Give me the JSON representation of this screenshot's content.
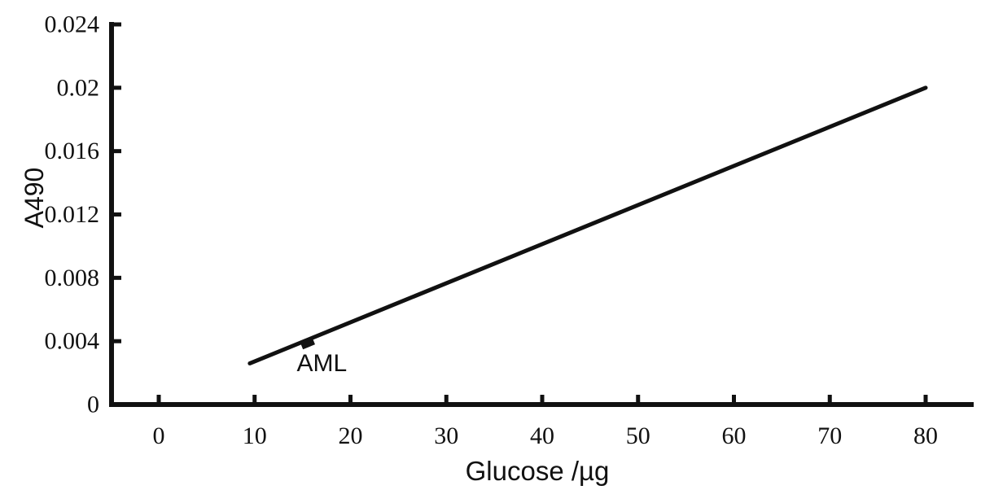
{
  "chart_data": {
    "type": "line",
    "title": "",
    "xlabel": "Glucose /µg",
    "ylabel": "A490",
    "xlim": [
      -4.9,
      84.8
    ],
    "ylim": [
      0,
      0.024
    ],
    "grid": false,
    "legend": false,
    "background_color": "#ffffff",
    "axis_color": "#111111",
    "x_ticks": [
      0,
      10,
      20,
      30,
      40,
      50,
      60,
      70,
      80
    ],
    "x_tick_labels": [
      "0",
      "10",
      "20",
      "30",
      "40",
      "50",
      "60",
      "70",
      "80"
    ],
    "y_ticks": [
      0,
      0.004,
      0.008,
      0.012,
      0.016,
      0.02,
      0.024
    ],
    "y_tick_labels": [
      "0",
      "0.004",
      "0.008",
      "0.012",
      "0.016",
      "0.02",
      "0.024"
    ],
    "series": [
      {
        "name": "glucose-calibration-line",
        "x": [
          9.5,
          80
        ],
        "y": [
          0.0026,
          0.02
        ],
        "color": "#111111",
        "width": 5
      }
    ],
    "points": [
      {
        "name": "AML-sample-point",
        "x": 15.5,
        "y": 0.0039,
        "marker": "square",
        "color": "#111111",
        "label": "AML"
      }
    ]
  }
}
